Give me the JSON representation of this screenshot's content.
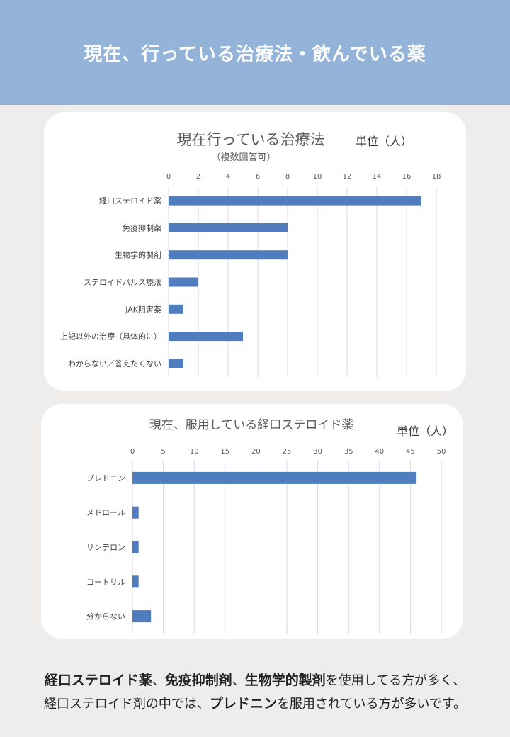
{
  "header": {
    "title": "現在、行っている治療法・飲んでいる薬"
  },
  "chart_data": [
    {
      "type": "bar",
      "orientation": "horizontal",
      "title": "現在行っている治療法",
      "subtitle": "（複数回答可）",
      "unit_label": "単位（人）",
      "xlim": [
        0,
        18
      ],
      "ticks": [
        0,
        2,
        4,
        6,
        8,
        10,
        12,
        14,
        16,
        18
      ],
      "grid": true,
      "bar_color": "#4f7dbe",
      "categories": [
        "経口ステロイド薬",
        "免疫抑制薬",
        "生物学的製剤",
        "ステロイドパルス療法",
        "JAK阻害薬",
        "上記以外の治療（具体的に）",
        "わからない／答えたくない"
      ],
      "values": [
        17,
        8,
        8,
        2,
        1,
        5,
        1
      ]
    },
    {
      "type": "bar",
      "orientation": "horizontal",
      "title": "現在、服用している経口ステロイド薬",
      "unit_label": "単位（人）",
      "xlim": [
        0,
        50
      ],
      "ticks": [
        0,
        5,
        10,
        15,
        20,
        25,
        30,
        35,
        40,
        45,
        50
      ],
      "grid": true,
      "bar_color": "#4f7dbe",
      "categories": [
        "プレドニン",
        "メドロール",
        "リンデロン",
        "コートリル",
        "分からない"
      ],
      "values": [
        46,
        1,
        1,
        1,
        3
      ]
    }
  ],
  "footer": {
    "l1_b1": "経口ステロイド薬",
    "l1_t1": "、",
    "l1_b2": "免疫抑制剤",
    "l1_t2": "、",
    "l1_b3": "生物学的製剤",
    "l1_t3": "を使用してる方が多く、",
    "l2_t1": "経口ステロイド剤の中では、",
    "l2_b1": "プレドニン",
    "l2_t2": "を服用されている方が多いです。"
  }
}
